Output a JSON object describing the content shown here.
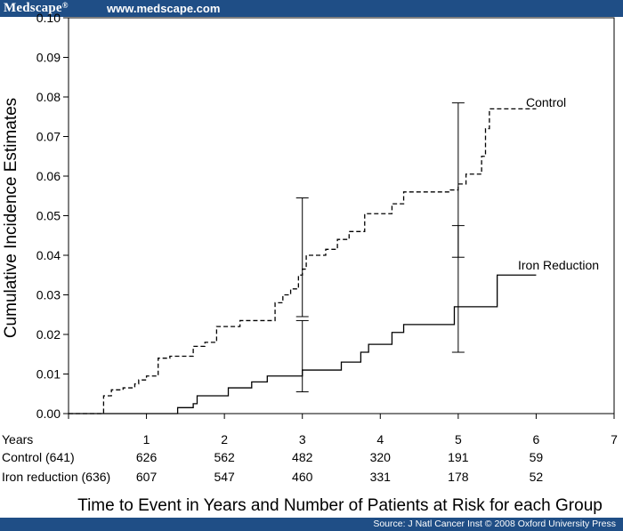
{
  "header": {
    "brand": "Medscape",
    "brand_mark": "®",
    "url": "www.medscape.com"
  },
  "footer": {
    "source": "Source: J Natl Cancer Inst © 2008 Oxford University Press"
  },
  "chart_data": {
    "type": "line",
    "subtype": "step",
    "title": "",
    "ylabel": "Cumulative Incidence Estimates",
    "xlabel": "Time to Event in Years and Number of Patients at Risk for each Group",
    "xlim": [
      0,
      7
    ],
    "ylim": [
      0,
      0.1
    ],
    "grid": false,
    "x_ticks": [
      1,
      2,
      3,
      4,
      5,
      6,
      7
    ],
    "y_ticks": [
      "0.00",
      "0.01",
      "0.02",
      "0.03",
      "0.04",
      "0.05",
      "0.06",
      "0.07",
      "0.08",
      "0.09",
      "0.10"
    ],
    "series": [
      {
        "name": "Control",
        "style": "dashed",
        "x": [
          0,
          0.45,
          0.55,
          0.7,
          0.85,
          0.9,
          1.0,
          1.15,
          1.3,
          1.4,
          1.6,
          1.75,
          1.9,
          2.2,
          2.5,
          2.65,
          2.75,
          2.85,
          2.95,
          3.0,
          3.05,
          3.3,
          3.45,
          3.6,
          3.8,
          4.15,
          4.3,
          4.4,
          4.5,
          4.9,
          5.0,
          5.05,
          5.1,
          5.15,
          5.3,
          5.35,
          5.4,
          6.0
        ],
        "y": [
          0,
          0.0045,
          0.006,
          0.0065,
          0.0075,
          0.0085,
          0.0095,
          0.014,
          0.0145,
          0.0145,
          0.017,
          0.018,
          0.022,
          0.0235,
          0.0235,
          0.028,
          0.03,
          0.0315,
          0.035,
          0.0365,
          0.04,
          0.0415,
          0.044,
          0.046,
          0.0505,
          0.053,
          0.056,
          0.056,
          0.056,
          0.0565,
          0.058,
          0.058,
          0.0605,
          0.0605,
          0.065,
          0.072,
          0.077,
          0.077
        ]
      },
      {
        "name": "Iron Reduction",
        "style": "solid",
        "x": [
          0,
          1.4,
          1.6,
          1.65,
          2.05,
          2.35,
          2.55,
          3.0,
          3.5,
          3.75,
          3.85,
          4.15,
          4.3,
          4.95,
          5.5,
          6.0
        ],
        "y": [
          0,
          0.0015,
          0.0025,
          0.0045,
          0.0065,
          0.008,
          0.0095,
          0.011,
          0.013,
          0.0155,
          0.0175,
          0.0205,
          0.0225,
          0.027,
          0.035,
          0.035
        ]
      }
    ],
    "error_bars": [
      {
        "x": 3,
        "low": 0.0245,
        "high": 0.0545
      },
      {
        "x": 3,
        "low": 0.0055,
        "high": 0.0235
      },
      {
        "x": 5,
        "low": 0.0395,
        "high": 0.0785
      },
      {
        "x": 5,
        "low": 0.0155,
        "high": 0.0475
      }
    ],
    "risk_table": {
      "header": "Years",
      "rows": [
        {
          "label": "Control (641)",
          "values": [
            "626",
            "562",
            "482",
            "320",
            "191",
            "59"
          ]
        },
        {
          "label": "Iron reduction (636)",
          "values": [
            "607",
            "547",
            "460",
            "331",
            "178",
            "52"
          ]
        }
      ]
    }
  }
}
